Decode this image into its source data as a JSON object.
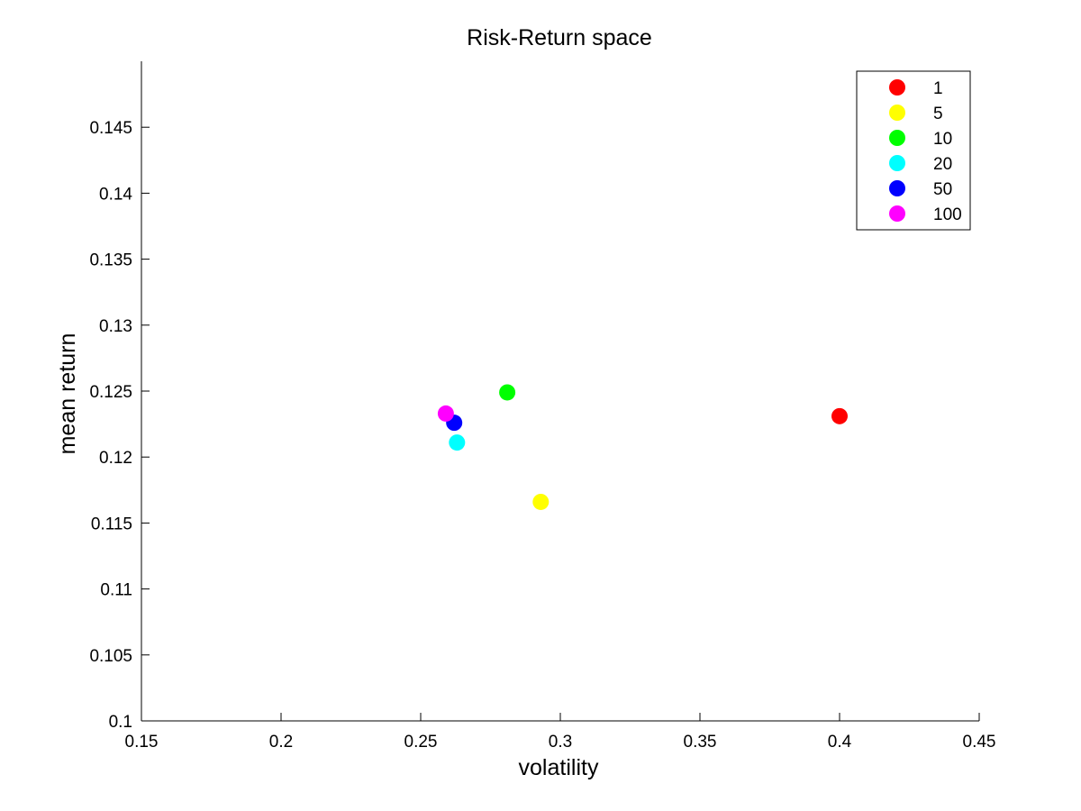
{
  "chart_data": {
    "type": "scatter",
    "title": "Risk-Return space",
    "xlabel": "volatility",
    "ylabel": "mean return",
    "xlim": [
      0.15,
      0.45
    ],
    "ylim": [
      0.1,
      0.15
    ],
    "xticks": [
      0.15,
      0.2,
      0.25,
      0.3,
      0.35,
      0.4,
      0.45
    ],
    "yticks": [
      0.1,
      0.105,
      0.11,
      0.115,
      0.12,
      0.125,
      0.13,
      0.135,
      0.14,
      0.145
    ],
    "xtick_labels": [
      "0.15",
      "0.2",
      "0.25",
      "0.3",
      "0.35",
      "0.4",
      "0.45"
    ],
    "ytick_labels": [
      "0.1",
      "0.105",
      "0.11",
      "0.115",
      "0.12",
      "0.125",
      "0.13",
      "0.135",
      "0.14",
      "0.145"
    ],
    "grid": false,
    "legend_position": "top-right",
    "series": [
      {
        "name": "1",
        "color": "#ff0000",
        "x": [
          0.4
        ],
        "y": [
          0.1231
        ]
      },
      {
        "name": "5",
        "color": "#ffff00",
        "x": [
          0.293
        ],
        "y": [
          0.1166
        ]
      },
      {
        "name": "10",
        "color": "#00ff00",
        "x": [
          0.281
        ],
        "y": [
          0.1249
        ]
      },
      {
        "name": "20",
        "color": "#00ffff",
        "x": [
          0.263
        ],
        "y": [
          0.1211
        ]
      },
      {
        "name": "50",
        "color": "#0000ff",
        "x": [
          0.262
        ],
        "y": [
          0.1226
        ]
      },
      {
        "name": "100",
        "color": "#ff00ff",
        "x": [
          0.259
        ],
        "y": [
          0.1233
        ]
      }
    ]
  }
}
